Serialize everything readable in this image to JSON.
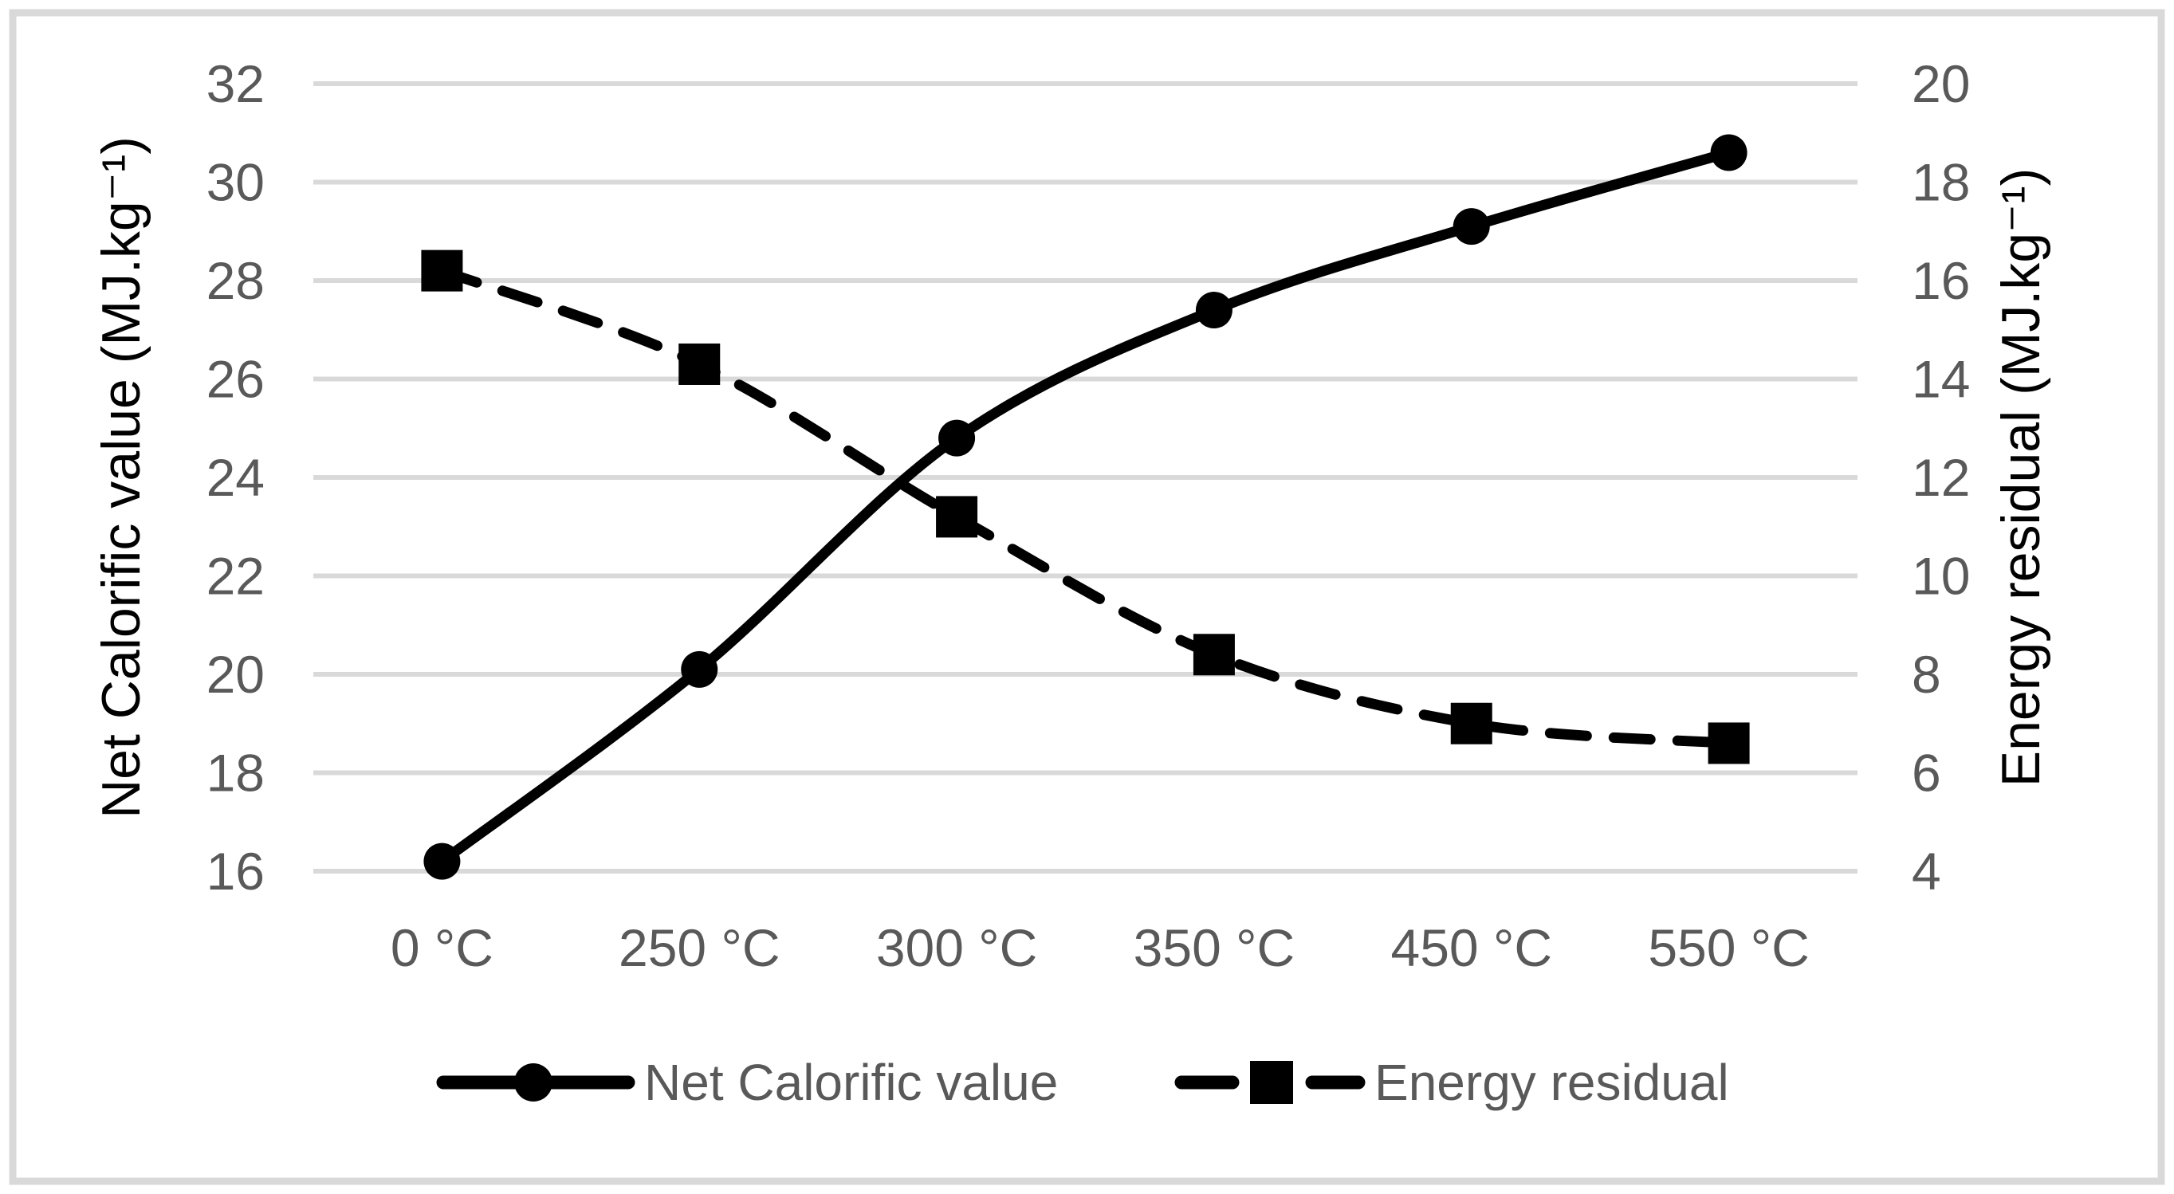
{
  "chart_data": {
    "type": "line",
    "title": "",
    "categories": [
      "0 °C",
      "250 °C",
      "300 °C",
      "350 °C",
      "450 °C",
      "550 °C"
    ],
    "series": [
      {
        "name": "Net Calorific value",
        "axis": "left",
        "line_style": "solid",
        "marker": "circle",
        "color": "#000000",
        "values": [
          16.2,
          20.1,
          24.8,
          27.4,
          29.1,
          30.6
        ]
      },
      {
        "name": "Energy residual",
        "axis": "right",
        "line_style": "dashed",
        "marker": "square",
        "color": "#000000",
        "values": [
          16.2,
          14.3,
          11.2,
          8.4,
          7.0,
          6.6
        ]
      }
    ],
    "left_axis": {
      "label": "Net Calorific value (MJ.kg⁻¹)",
      "min": 16,
      "max": 32,
      "ticks": [
        32,
        30,
        28,
        26,
        24,
        22,
        20,
        18,
        16
      ]
    },
    "right_axis": {
      "label": "Energy residual (MJ.kg⁻¹)",
      "min": 4,
      "max": 20,
      "ticks": [
        20,
        18,
        16,
        14,
        12,
        10,
        8,
        6,
        4
      ]
    },
    "xlabel": "",
    "grid": true,
    "legend_position": "bottom",
    "colors": {
      "series": "#000000",
      "grid": "#d9d9d9",
      "border": "#d9d9d9",
      "tick_text": "#595959",
      "axis_title_text": "#000000",
      "legend_text": "#595959",
      "background": "#ffffff"
    }
  }
}
